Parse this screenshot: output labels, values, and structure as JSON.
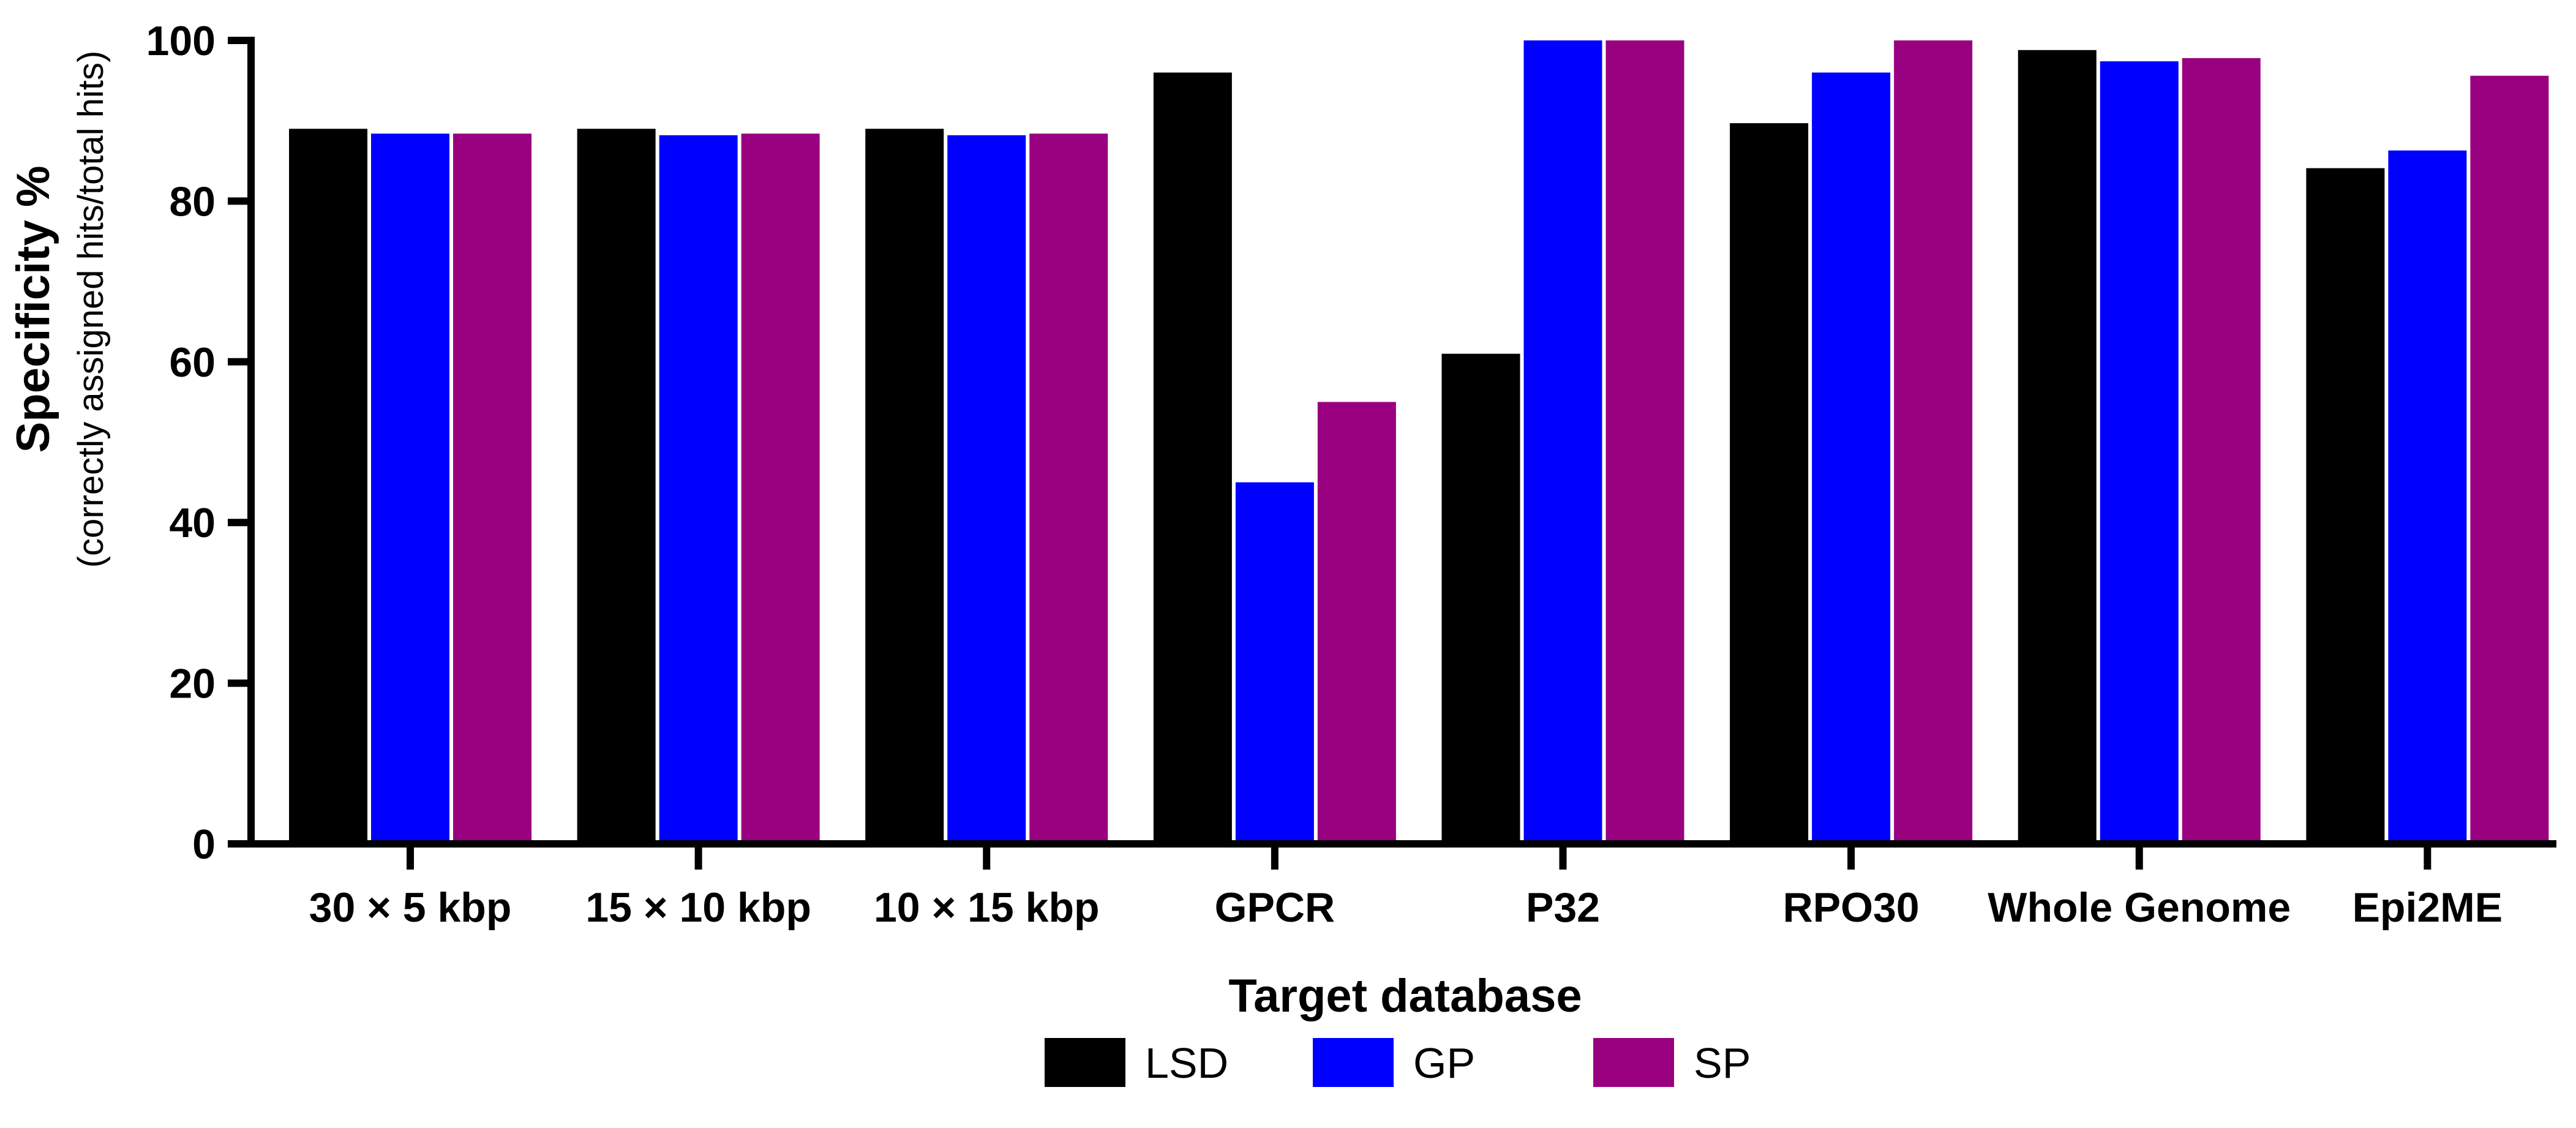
{
  "chart_data": {
    "type": "bar",
    "title": "",
    "xlabel": "Target database",
    "ylabel": "Specificity %",
    "ylabel_sub": "(correctly assigned hits/total hits)",
    "ylim": [
      0,
      100
    ],
    "yticks": [
      0,
      20,
      40,
      60,
      80,
      100
    ],
    "grid": false,
    "legend_position": "bottom-center",
    "categories": [
      "30 × 5 kbp",
      "15 × 10 kbp",
      "10 × 15 kbp",
      "GPCR",
      "P32",
      "RPO30",
      "Whole Genome",
      "Epi2ME"
    ],
    "series": [
      {
        "name": "LSD",
        "color": "#000000",
        "values": [
          89,
          89,
          89,
          96,
          61,
          89.7,
          98.8,
          84.1
        ]
      },
      {
        "name": "GP",
        "color": "#0000ff",
        "values": [
          88.4,
          88.2,
          88.2,
          45,
          100,
          96,
          97.4,
          86.3
        ]
      },
      {
        "name": "SP",
        "color": "#990080",
        "values": [
          88.4,
          88.4,
          88.4,
          55,
          100,
          100,
          97.8,
          95.6
        ]
      }
    ]
  }
}
